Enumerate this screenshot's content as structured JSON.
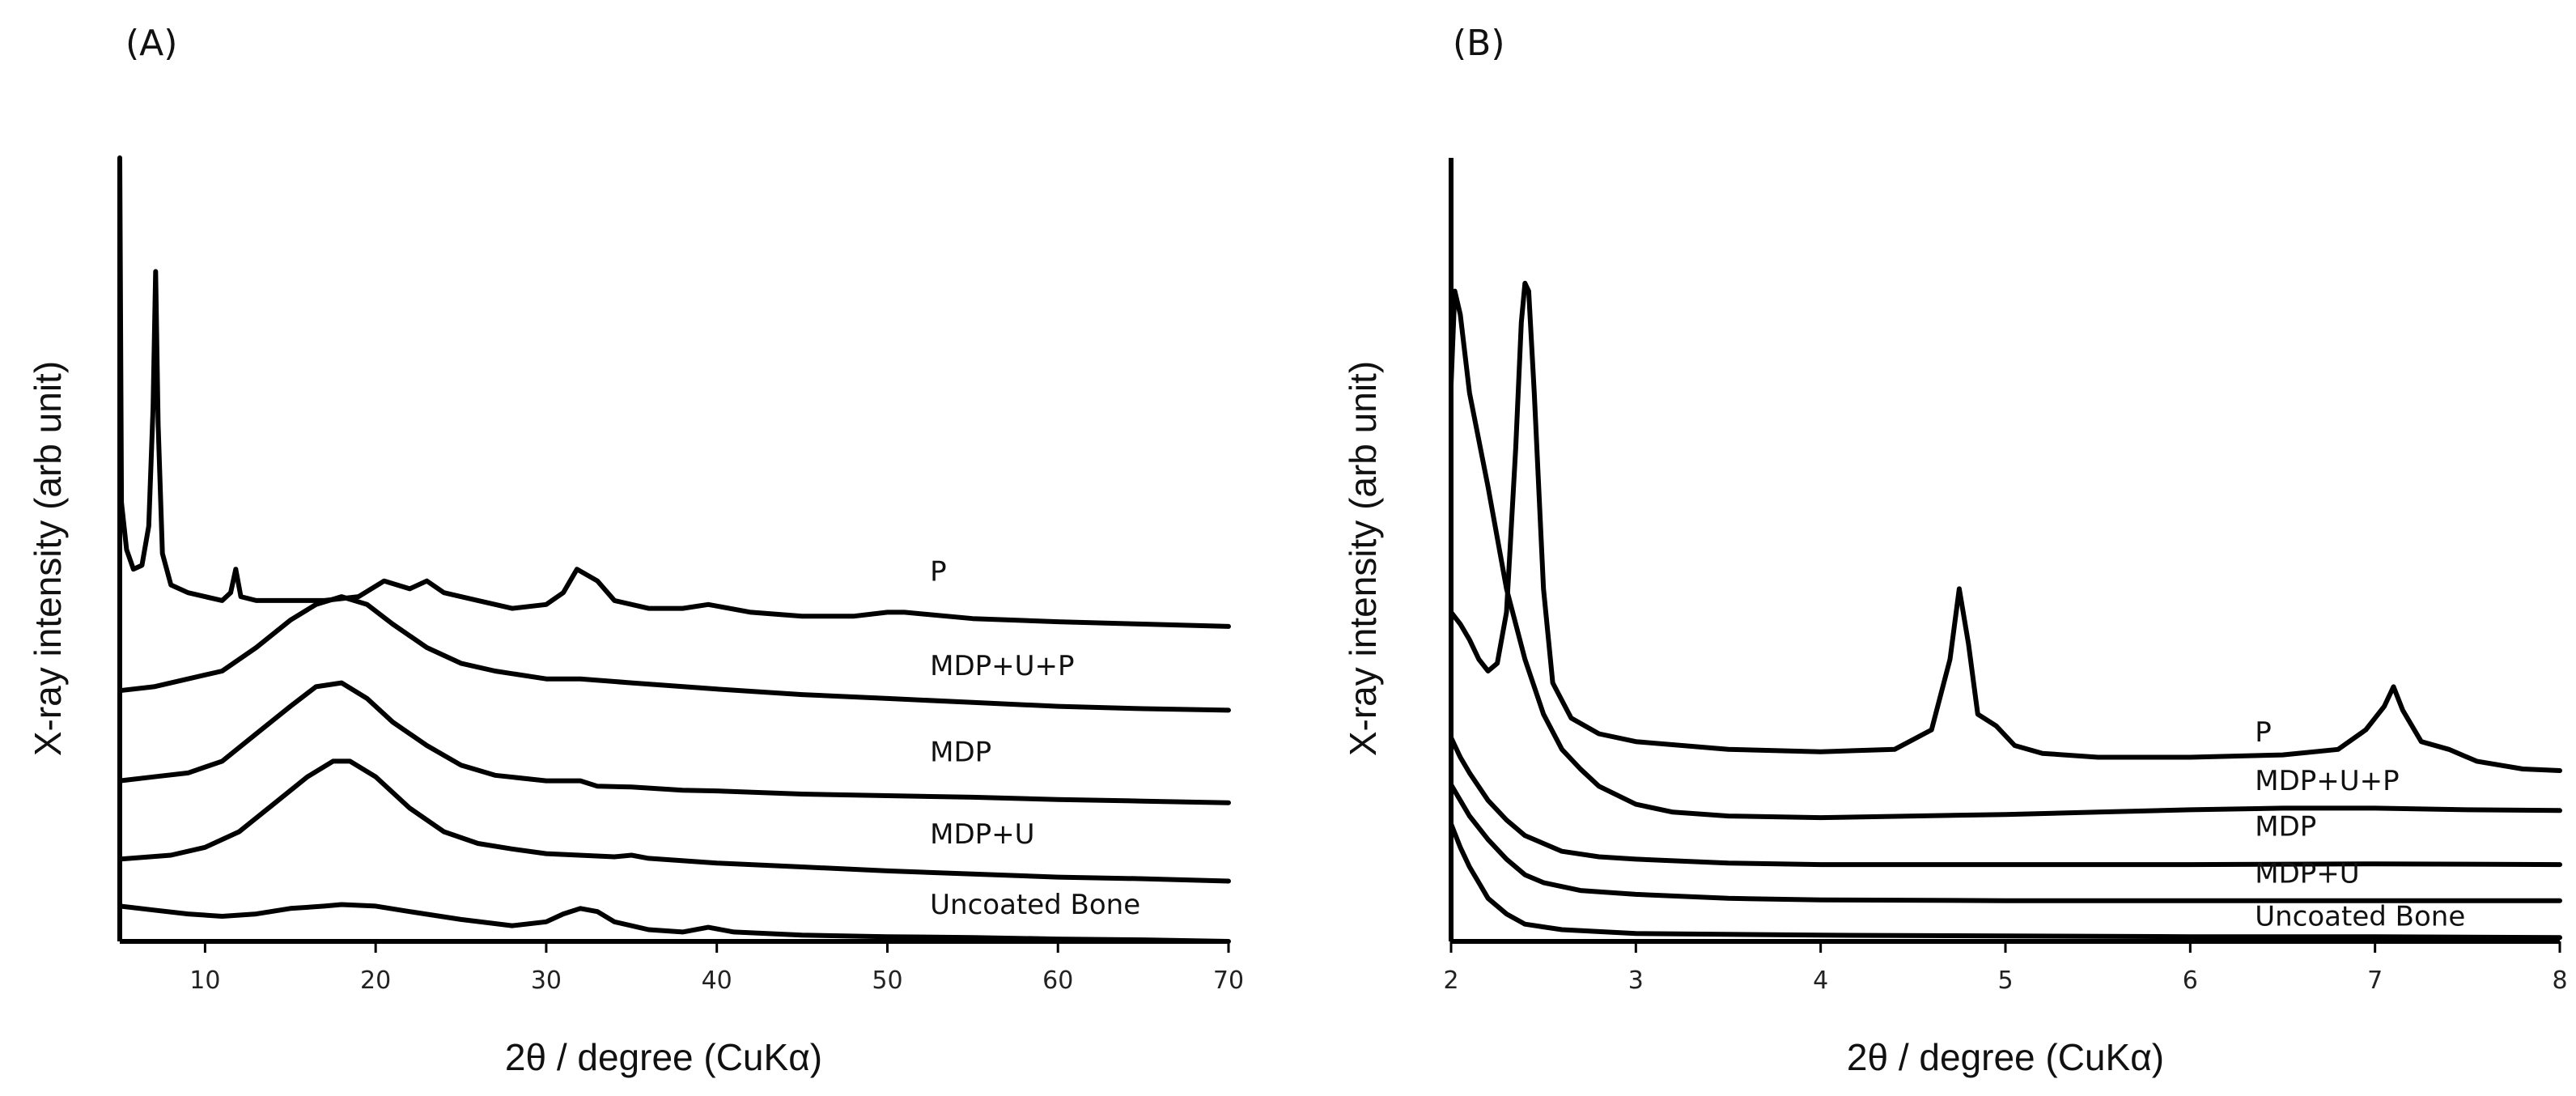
{
  "chart_data": [
    {
      "type": "line",
      "panel_label": "(A)",
      "title": "",
      "xlabel": "2θ / degree (CuKα)",
      "ylabel": "X-ray intensity (arb unit)",
      "xlim": [
        5,
        70
      ],
      "ylim": [
        0,
        10
      ],
      "xticks": [
        10,
        20,
        30,
        40,
        50,
        60,
        70
      ],
      "yticks_shown": false,
      "series": [
        {
          "name": "P",
          "label_at": [
            52.5,
            4.6
          ],
          "points": [
            [
              5,
              10.0
            ],
            [
              5.1,
              5.6
            ],
            [
              5.4,
              5.0
            ],
            [
              5.8,
              4.75
            ],
            [
              6.3,
              4.8
            ],
            [
              6.7,
              5.3
            ],
            [
              6.95,
              6.8
            ],
            [
              7.1,
              8.55
            ],
            [
              7.25,
              6.6
            ],
            [
              7.5,
              4.95
            ],
            [
              8,
              4.55
            ],
            [
              9,
              4.45
            ],
            [
              10,
              4.4
            ],
            [
              11,
              4.35
            ],
            [
              11.5,
              4.45
            ],
            [
              11.8,
              4.75
            ],
            [
              12.1,
              4.4
            ],
            [
              13,
              4.35
            ],
            [
              15,
              4.35
            ],
            [
              17,
              4.35
            ],
            [
              19,
              4.4
            ],
            [
              20.5,
              4.6
            ],
            [
              22,
              4.5
            ],
            [
              23,
              4.6
            ],
            [
              24,
              4.45
            ],
            [
              26,
              4.35
            ],
            [
              28,
              4.25
            ],
            [
              30,
              4.3
            ],
            [
              31,
              4.45
            ],
            [
              31.8,
              4.75
            ],
            [
              33,
              4.6
            ],
            [
              34,
              4.35
            ],
            [
              36,
              4.25
            ],
            [
              38,
              4.25
            ],
            [
              39.5,
              4.3
            ],
            [
              42,
              4.2
            ],
            [
              45,
              4.15
            ],
            [
              48,
              4.15
            ],
            [
              50,
              4.2
            ],
            [
              51,
              4.2
            ],
            [
              55,
              4.12
            ],
            [
              60,
              4.08
            ],
            [
              65,
              4.05
            ],
            [
              70,
              4.02
            ]
          ]
        },
        {
          "name": "MDP+U+P",
          "label_at": [
            52.5,
            3.4
          ],
          "points": [
            [
              5,
              3.2
            ],
            [
              7,
              3.25
            ],
            [
              9,
              3.35
            ],
            [
              11,
              3.45
            ],
            [
              13,
              3.75
            ],
            [
              15,
              4.1
            ],
            [
              16.5,
              4.3
            ],
            [
              18,
              4.4
            ],
            [
              19.5,
              4.3
            ],
            [
              21,
              4.05
            ],
            [
              23,
              3.75
            ],
            [
              25,
              3.55
            ],
            [
              27,
              3.45
            ],
            [
              30,
              3.35
            ],
            [
              32,
              3.35
            ],
            [
              35,
              3.3
            ],
            [
              40,
              3.22
            ],
            [
              45,
              3.15
            ],
            [
              50,
              3.1
            ],
            [
              55,
              3.05
            ],
            [
              60,
              3.0
            ],
            [
              65,
              2.97
            ],
            [
              70,
              2.95
            ]
          ]
        },
        {
          "name": "MDP",
          "label_at": [
            52.5,
            2.3
          ],
          "points": [
            [
              5,
              2.05
            ],
            [
              7,
              2.1
            ],
            [
              9,
              2.15
            ],
            [
              11,
              2.3
            ],
            [
              13,
              2.65
            ],
            [
              15,
              3.0
            ],
            [
              16.5,
              3.25
            ],
            [
              18,
              3.3
            ],
            [
              19.5,
              3.1
            ],
            [
              21,
              2.8
            ],
            [
              23,
              2.5
            ],
            [
              25,
              2.25
            ],
            [
              27,
              2.12
            ],
            [
              30,
              2.05
            ],
            [
              32,
              2.05
            ],
            [
              33,
              1.98
            ],
            [
              35,
              1.97
            ],
            [
              38,
              1.93
            ],
            [
              40,
              1.92
            ],
            [
              45,
              1.88
            ],
            [
              50,
              1.86
            ],
            [
              55,
              1.84
            ],
            [
              60,
              1.81
            ],
            [
              65,
              1.79
            ],
            [
              70,
              1.77
            ]
          ]
        },
        {
          "name": "MDP+U",
          "label_at": [
            52.5,
            1.25
          ],
          "points": [
            [
              5,
              1.05
            ],
            [
              8,
              1.1
            ],
            [
              10,
              1.2
            ],
            [
              12,
              1.4
            ],
            [
              14,
              1.75
            ],
            [
              16,
              2.1
            ],
            [
              17.5,
              2.3
            ],
            [
              18.5,
              2.3
            ],
            [
              20,
              2.1
            ],
            [
              22,
              1.7
            ],
            [
              24,
              1.4
            ],
            [
              26,
              1.25
            ],
            [
              28,
              1.18
            ],
            [
              30,
              1.12
            ],
            [
              34,
              1.08
            ],
            [
              35,
              1.1
            ],
            [
              36,
              1.06
            ],
            [
              40,
              1.0
            ],
            [
              45,
              0.95
            ],
            [
              50,
              0.9
            ],
            [
              55,
              0.86
            ],
            [
              60,
              0.82
            ],
            [
              65,
              0.8
            ],
            [
              70,
              0.77
            ]
          ]
        },
        {
          "name": "Uncoated Bone",
          "label_at": [
            52.5,
            0.35
          ],
          "points": [
            [
              5,
              0.45
            ],
            [
              7,
              0.4
            ],
            [
              9,
              0.35
            ],
            [
              11,
              0.32
            ],
            [
              13,
              0.35
            ],
            [
              15,
              0.42
            ],
            [
              17,
              0.45
            ],
            [
              18,
              0.47
            ],
            [
              20,
              0.45
            ],
            [
              22,
              0.38
            ],
            [
              25,
              0.28
            ],
            [
              28,
              0.2
            ],
            [
              30,
              0.25
            ],
            [
              31,
              0.35
            ],
            [
              32,
              0.42
            ],
            [
              33,
              0.38
            ],
            [
              34,
              0.25
            ],
            [
              36,
              0.15
            ],
            [
              38,
              0.12
            ],
            [
              39.5,
              0.18
            ],
            [
              41,
              0.12
            ],
            [
              45,
              0.08
            ],
            [
              50,
              0.06
            ],
            [
              55,
              0.05
            ],
            [
              60,
              0.03
            ],
            [
              65,
              0.02
            ],
            [
              70,
              0.0
            ]
          ]
        }
      ]
    },
    {
      "type": "line",
      "panel_label": "(B)",
      "title": "",
      "xlabel": "2θ / degree (CuKα)",
      "ylabel": "X-ray intensity (arb unit)",
      "xlim": [
        2,
        8
      ],
      "ylim": [
        0,
        10
      ],
      "xticks": [
        2,
        3,
        4,
        5,
        6,
        7,
        8
      ],
      "yticks_shown": false,
      "series": [
        {
          "name": "P",
          "label_at": [
            6.35,
            2.55
          ],
          "points": [
            [
              2,
              4.2
            ],
            [
              2.05,
              4.05
            ],
            [
              2.1,
              3.85
            ],
            [
              2.15,
              3.6
            ],
            [
              2.2,
              3.45
            ],
            [
              2.25,
              3.55
            ],
            [
              2.3,
              4.2
            ],
            [
              2.35,
              6.3
            ],
            [
              2.38,
              7.9
            ],
            [
              2.4,
              8.4
            ],
            [
              2.42,
              8.3
            ],
            [
              2.45,
              7.0
            ],
            [
              2.5,
              4.5
            ],
            [
              2.55,
              3.3
            ],
            [
              2.65,
              2.85
            ],
            [
              2.8,
              2.65
            ],
            [
              3.0,
              2.55
            ],
            [
              3.5,
              2.45
            ],
            [
              4.0,
              2.42
            ],
            [
              4.4,
              2.45
            ],
            [
              4.6,
              2.7
            ],
            [
              4.7,
              3.6
            ],
            [
              4.75,
              4.5
            ],
            [
              4.8,
              3.8
            ],
            [
              4.85,
              2.9
            ],
            [
              4.95,
              2.75
            ],
            [
              5.05,
              2.5
            ],
            [
              5.2,
              2.4
            ],
            [
              5.5,
              2.35
            ],
            [
              6.0,
              2.35
            ],
            [
              6.5,
              2.38
            ],
            [
              6.8,
              2.45
            ],
            [
              6.95,
              2.7
            ],
            [
              7.05,
              3.0
            ],
            [
              7.1,
              3.25
            ],
            [
              7.15,
              2.95
            ],
            [
              7.25,
              2.55
            ],
            [
              7.4,
              2.45
            ],
            [
              7.55,
              2.3
            ],
            [
              7.8,
              2.2
            ],
            [
              8,
              2.18
            ]
          ]
        },
        {
          "name": "MDP+U+P",
          "label_at": [
            6.35,
            1.93
          ],
          "points": [
            [
              2,
              7.1
            ],
            [
              2.02,
              8.3
            ],
            [
              2.05,
              8.0
            ],
            [
              2.1,
              7.0
            ],
            [
              2.2,
              5.8
            ],
            [
              2.3,
              4.5
            ],
            [
              2.4,
              3.6
            ],
            [
              2.5,
              2.9
            ],
            [
              2.6,
              2.45
            ],
            [
              2.7,
              2.2
            ],
            [
              2.8,
              1.98
            ],
            [
              3.0,
              1.75
            ],
            [
              3.2,
              1.65
            ],
            [
              3.5,
              1.6
            ],
            [
              4.0,
              1.58
            ],
            [
              4.5,
              1.6
            ],
            [
              5.0,
              1.62
            ],
            [
              5.5,
              1.65
            ],
            [
              6.0,
              1.68
            ],
            [
              6.5,
              1.7
            ],
            [
              7.0,
              1.7
            ],
            [
              7.5,
              1.68
            ],
            [
              8,
              1.67
            ]
          ]
        },
        {
          "name": "MDP",
          "label_at": [
            6.35,
            1.35
          ],
          "points": [
            [
              2,
              2.6
            ],
            [
              2.05,
              2.35
            ],
            [
              2.1,
              2.15
            ],
            [
              2.2,
              1.8
            ],
            [
              2.3,
              1.55
            ],
            [
              2.4,
              1.35
            ],
            [
              2.6,
              1.15
            ],
            [
              2.8,
              1.08
            ],
            [
              3.0,
              1.05
            ],
            [
              3.5,
              1.0
            ],
            [
              4.0,
              0.98
            ],
            [
              5.0,
              0.98
            ],
            [
              6.0,
              0.98
            ],
            [
              7.0,
              0.99
            ],
            [
              8,
              0.98
            ]
          ]
        },
        {
          "name": "MDP+U",
          "label_at": [
            6.35,
            0.75
          ],
          "points": [
            [
              2,
              2.0
            ],
            [
              2.05,
              1.8
            ],
            [
              2.1,
              1.6
            ],
            [
              2.2,
              1.3
            ],
            [
              2.3,
              1.05
            ],
            [
              2.4,
              0.85
            ],
            [
              2.5,
              0.75
            ],
            [
              2.7,
              0.65
            ],
            [
              3.0,
              0.6
            ],
            [
              3.5,
              0.55
            ],
            [
              4.0,
              0.53
            ],
            [
              5.0,
              0.52
            ],
            [
              6.0,
              0.52
            ],
            [
              7.0,
              0.52
            ],
            [
              8,
              0.52
            ]
          ]
        },
        {
          "name": "Uncoated Bone",
          "label_at": [
            6.35,
            0.2
          ],
          "points": [
            [
              2,
              1.5
            ],
            [
              2.05,
              1.2
            ],
            [
              2.1,
              0.95
            ],
            [
              2.15,
              0.75
            ],
            [
              2.2,
              0.55
            ],
            [
              2.3,
              0.35
            ],
            [
              2.4,
              0.22
            ],
            [
              2.6,
              0.15
            ],
            [
              3.0,
              0.1
            ],
            [
              4.0,
              0.08
            ],
            [
              5.0,
              0.07
            ],
            [
              6.0,
              0.06
            ],
            [
              7.0,
              0.06
            ],
            [
              8,
              0.05
            ]
          ]
        }
      ]
    }
  ]
}
